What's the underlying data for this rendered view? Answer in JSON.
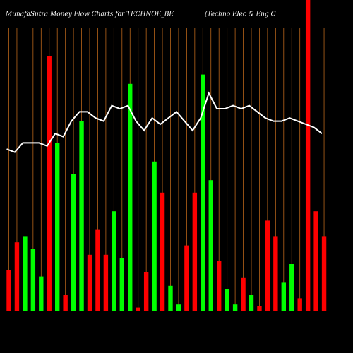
{
  "chart_data": {
    "type": "bar",
    "title": "MunafaSutra  Money Flow  Charts for TECHNOE_BE",
    "subtitle": "(Techno  Elec & Eng C",
    "categories": [
      null,
      null,
      null,
      null,
      null,
      null,
      null,
      null,
      null,
      null,
      null,
      null,
      null,
      null,
      null,
      null,
      null,
      null,
      null,
      null,
      null,
      null,
      null,
      null,
      null,
      null,
      null,
      null,
      null,
      null,
      null,
      null,
      null,
      null,
      null,
      null,
      null,
      null,
      null,
      null
    ],
    "values": [
      13,
      22,
      24,
      20,
      11,
      82,
      54,
      5,
      44,
      61,
      18,
      26,
      18,
      32,
      17,
      73,
      1,
      12.5,
      48,
      38,
      8,
      2,
      21,
      38,
      76,
      42,
      16,
      7,
      2,
      10.5,
      5,
      1.5,
      29,
      24,
      9,
      15,
      4,
      100,
      32,
      24
    ],
    "colors": [
      "#ff0000",
      "#ff0000",
      "#00ff00",
      "#00ff00",
      "#00ff00",
      "#ff0000",
      "#00ff00",
      "#ff0000",
      "#00ff00",
      "#00ff00",
      "#ff0000",
      "#ff0000",
      "#ff0000",
      "#00ff00",
      "#00ff00",
      "#00ff00",
      "#ff0000",
      "#ff0000",
      "#00ff00",
      "#ff0000",
      "#00ff00",
      "#00ff00",
      "#ff0000",
      "#ff0000",
      "#00ff00",
      "#00ff00",
      "#ff0000",
      "#00ff00",
      "#00ff00",
      "#ff0000",
      "#00ff00",
      "#ff0000",
      "#ff0000",
      "#ff0000",
      "#00ff00",
      "#00ff00",
      "#ff0000",
      "#ff0000",
      "#ff0000",
      "#ff0000"
    ],
    "line": {
      "color": "#ffffff",
      "values": [
        52,
        51,
        54,
        54,
        54,
        53,
        57,
        56,
        61,
        64,
        64,
        62,
        61,
        66,
        65,
        66,
        61,
        58,
        62,
        60,
        62,
        64,
        61,
        58,
        62,
        70,
        65,
        65,
        66,
        65,
        66,
        64,
        62,
        61,
        61,
        62,
        61,
        60,
        59,
        57
      ]
    },
    "ylim": [
      0,
      100
    ]
  }
}
